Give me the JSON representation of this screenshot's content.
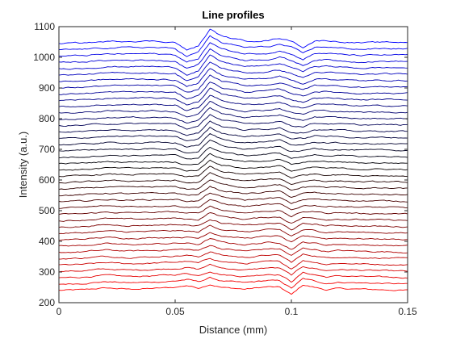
{
  "chart_data": {
    "type": "line",
    "title": "Line profiles",
    "xlabel": "Distance (mm)",
    "ylabel": "Intensity (a.u.)",
    "xlim": [
      0,
      0.15
    ],
    "ylim": [
      200,
      1100
    ],
    "xticks": [
      0,
      0.05,
      0.1,
      0.15
    ],
    "xtick_labels": [
      "0",
      "0.05",
      "0.1",
      "0.15"
    ],
    "yticks": [
      200,
      300,
      400,
      500,
      600,
      700,
      800,
      900,
      1000,
      1100
    ],
    "ytick_labels": [
      "200",
      "300",
      "400",
      "500",
      "600",
      "700",
      "800",
      "900",
      "1000",
      "1100"
    ],
    "grid": false,
    "legend": "none",
    "color_gradient": {
      "bottom": "#ff0000",
      "middle": "#000000",
      "top": "#0000ff"
    },
    "series_count": 40,
    "offset_range": [
      240,
      1045
    ],
    "x": [
      0,
      0.01,
      0.02,
      0.03,
      0.04,
      0.05,
      0.055,
      0.06,
      0.065,
      0.07,
      0.08,
      0.09,
      0.095,
      0.1,
      0.105,
      0.11,
      0.115,
      0.12,
      0.13,
      0.14,
      0.15
    ],
    "bottom_profile_shape": [
      0,
      2,
      8,
      4,
      6,
      10,
      16,
      8,
      20,
      10,
      4,
      12,
      10,
      -14,
      18,
      10,
      2,
      6,
      4,
      2,
      0
    ],
    "top_profile_shape": [
      0,
      2,
      6,
      8,
      8,
      4,
      -22,
      -8,
      46,
      24,
      8,
      10,
      18,
      8,
      -12,
      8,
      10,
      6,
      2,
      4,
      4
    ]
  }
}
